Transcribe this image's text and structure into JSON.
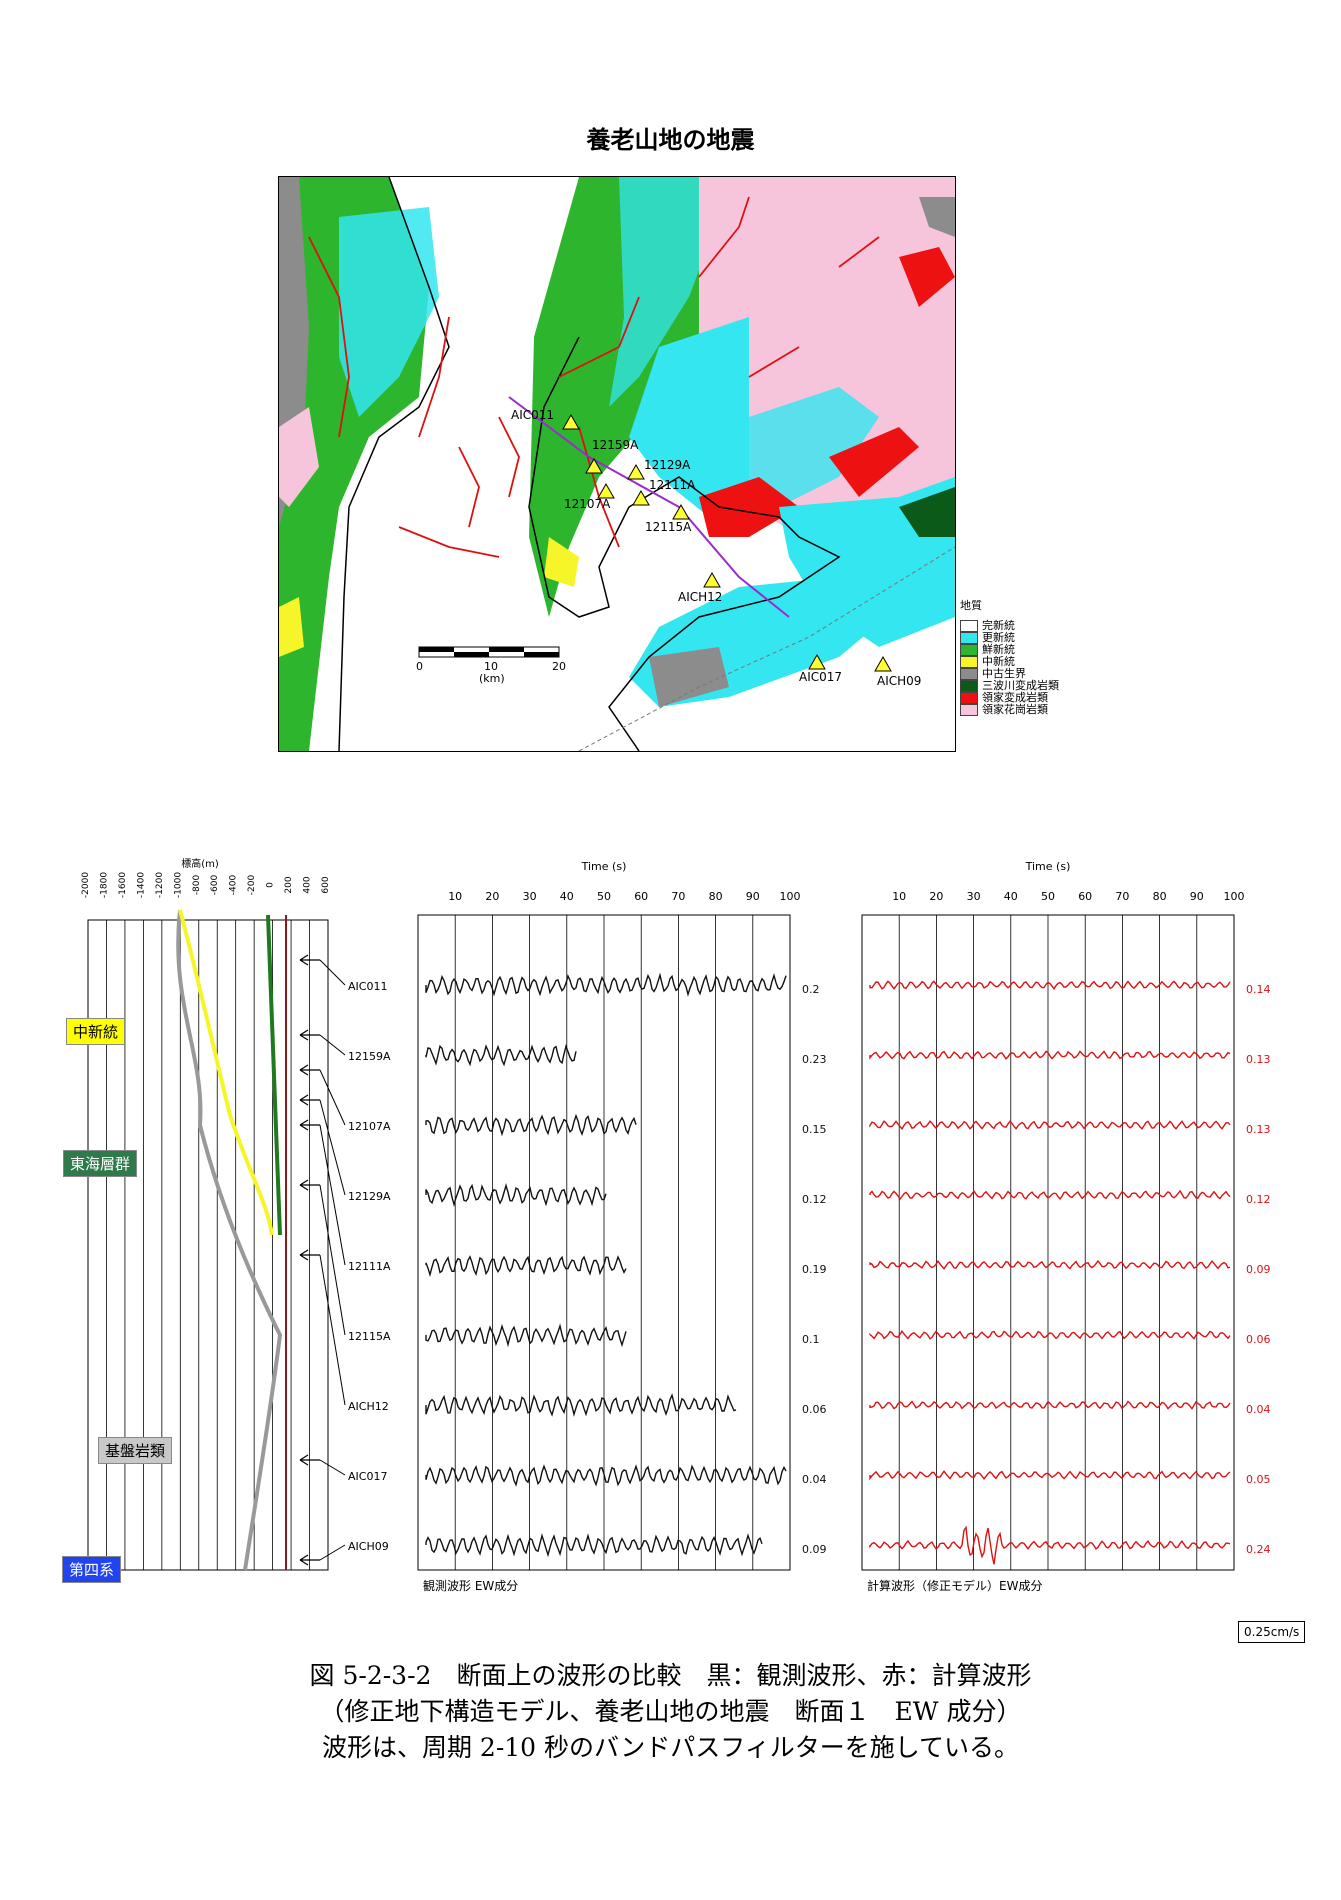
{
  "map": {
    "title": "養老山地の地震",
    "scale": {
      "ticks": [
        "0",
        "10",
        "20"
      ],
      "unit": "(km)"
    },
    "stations": [
      "AIC011",
      "12159A",
      "12129A",
      "12111A",
      "12107A",
      "12115A",
      "AICH12",
      "AIC017",
      "AICH09"
    ],
    "legend": {
      "title": "地質",
      "items": [
        {
          "label": "完新統",
          "color": "#ffffff"
        },
        {
          "label": "更新統",
          "color": "#33e6f0"
        },
        {
          "label": "鮮新統",
          "color": "#2db52d"
        },
        {
          "label": "中新統",
          "color": "#f5f52a"
        },
        {
          "label": "中古生界",
          "color": "#8c8c8c"
        },
        {
          "label": "三波川変成岩類",
          "color": "#0b5a1a"
        },
        {
          "label": "領家変成岩類",
          "color": "#ee1111"
        },
        {
          "label": "領家花崗岩類",
          "color": "#f6c5dc"
        }
      ]
    }
  },
  "section": {
    "axis_title": "標高(m)",
    "ticks": [
      "-2000",
      "-1800",
      "-1600",
      "-1400",
      "-1200",
      "-1000",
      "-800",
      "-600",
      "-400",
      "-200",
      "0",
      "200",
      "400",
      "600"
    ],
    "labels": [
      {
        "text": "中新統",
        "color": "#ffff00"
      },
      {
        "text": "東海層群",
        "color": "#2f7a4a"
      },
      {
        "text": "基盤岩類",
        "color": "#c8c8c8"
      },
      {
        "text": "第四系",
        "color": "#2244ee"
      }
    ]
  },
  "waveforms": {
    "time_label": "Time (s)",
    "time_ticks": [
      "10",
      "20",
      "30",
      "40",
      "50",
      "60",
      "70",
      "80",
      "90",
      "100"
    ],
    "stations": [
      "AIC011",
      "12159A",
      "12107A",
      "12129A",
      "12111A",
      "12115A",
      "AICH12",
      "AIC017",
      "AICH09"
    ],
    "observed_max": [
      "0.2",
      "0.23",
      "0.15",
      "0.12",
      "0.19",
      "0.1",
      "0.06",
      "0.04",
      "0.09"
    ],
    "computed_max": [
      "0.14",
      "0.13",
      "0.13",
      "0.12",
      "0.09",
      "0.06",
      "0.04",
      "0.05",
      "0.24"
    ],
    "observed_title": "観測波形 EW成分",
    "computed_title": "計算波形（修正モデル）EW成分",
    "unit_label": "0.25cm/s",
    "colors": {
      "observed": "#111111",
      "computed": "#e01010"
    }
  },
  "caption": {
    "line1": "図 5-2-3-2　断面上の波形の比較　黒：観測波形、赤：計算波形",
    "line2": "（修正地下構造モデル、養老山地の地震　断面１　EW 成分）",
    "line3": "波形は、周期 2-10 秒のバンドパスフィルターを施している。"
  }
}
